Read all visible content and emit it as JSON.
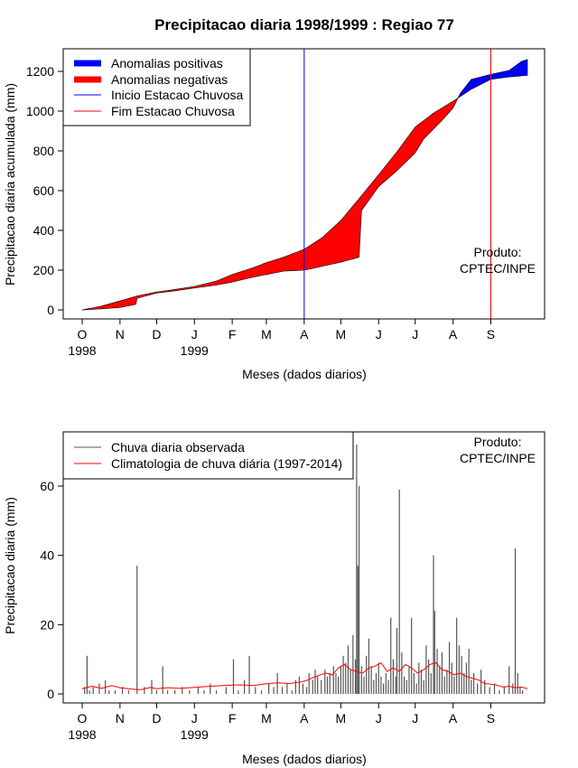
{
  "title": "Precipitacao diaria 1998/1999 : Regiao 77",
  "product": {
    "line1": "Produto:",
    "line2": "CPTEC/INPE"
  },
  "month_labels": [
    "O",
    "N",
    "D",
    "J",
    "F",
    "M",
    "A",
    "M",
    "J",
    "J",
    "A",
    "S"
  ],
  "year_labels": [
    "1998",
    "1999"
  ],
  "colors": {
    "positive": "#0000ff",
    "negative": "#ff0000",
    "season_start": "#0000ff",
    "season_end": "#ff0000",
    "observed": "#555555",
    "climatology": "#ff0000"
  },
  "chart_data": [
    {
      "type": "area",
      "title": "Precipitacao diaria 1998/1999 : Regiao 77",
      "xlabel": "Meses (dados diarios)",
      "ylabel": "Precipitacao diaria acumulada (mm)",
      "x_unit": "day index (0 = 1 Oct 1998)",
      "xlim": [
        0,
        365
      ],
      "ylim": [
        0,
        1300
      ],
      "yticks": [
        0,
        200,
        400,
        600,
        800,
        1000,
        1200
      ],
      "legend": {
        "position": "top-left",
        "entries": [
          "Anomalias positivas",
          "Anomalias negativas",
          "Inicio Estacao Chuvosa",
          "Fim Estacao Chuvosa"
        ]
      },
      "season_start_day": 182,
      "season_end_day": 335,
      "climatology_cumulative": {
        "x": [
          0,
          15,
          31,
          45,
          61,
          75,
          92,
          110,
          123,
          140,
          151,
          165,
          182,
          197,
          212,
          227,
          243,
          258,
          273,
          288,
          304,
          319,
          335,
          350,
          365
        ],
        "y": [
          0,
          18,
          45,
          70,
          90,
          102,
          118,
          145,
          178,
          212,
          238,
          265,
          305,
          365,
          450,
          560,
          680,
          795,
          920,
          990,
          1050,
          1110,
          1160,
          1172,
          1180
        ]
      },
      "observed_cumulative": {
        "x": [
          0,
          15,
          31,
          44,
          45,
          61,
          75,
          92,
          110,
          123,
          140,
          151,
          165,
          182,
          190,
          197,
          212,
          227,
          229,
          243,
          258,
          273,
          280,
          288,
          296,
          304,
          310,
          319,
          335,
          350,
          360,
          365
        ],
        "y": [
          0,
          5,
          12,
          28,
          58,
          85,
          95,
          110,
          125,
          140,
          165,
          178,
          195,
          200,
          210,
          220,
          240,
          265,
          500,
          620,
          700,
          790,
          860,
          910,
          960,
          1015,
          1090,
          1160,
          1185,
          1205,
          1250,
          1260
        ]
      }
    },
    {
      "type": "bar",
      "xlabel": "Meses (dados diarios)",
      "ylabel": "Precipitacao diaria (mm)",
      "x_unit": "day index (0 = 1 Oct 1998)",
      "xlim": [
        0,
        365
      ],
      "ylim": [
        0,
        72
      ],
      "yticks": [
        0,
        20,
        40,
        60
      ],
      "legend": {
        "position": "top-left",
        "entries": [
          "Chuva diaria observada",
          "Climatologia de chuva diária (1997-2014)"
        ]
      },
      "observed_bars": [
        {
          "day": 2,
          "value": 2
        },
        {
          "day": 4,
          "value": 11
        },
        {
          "day": 6,
          "value": 1
        },
        {
          "day": 9,
          "value": 2
        },
        {
          "day": 14,
          "value": 3
        },
        {
          "day": 19,
          "value": 4
        },
        {
          "day": 22,
          "value": 1
        },
        {
          "day": 27,
          "value": 1
        },
        {
          "day": 33,
          "value": 2
        },
        {
          "day": 38,
          "value": 1
        },
        {
          "day": 45,
          "value": 37
        },
        {
          "day": 51,
          "value": 2
        },
        {
          "day": 57,
          "value": 4
        },
        {
          "day": 61,
          "value": 1
        },
        {
          "day": 66,
          "value": 8
        },
        {
          "day": 70,
          "value": 1
        },
        {
          "day": 76,
          "value": 1
        },
        {
          "day": 82,
          "value": 2
        },
        {
          "day": 88,
          "value": 1
        },
        {
          "day": 95,
          "value": 2
        },
        {
          "day": 100,
          "value": 1
        },
        {
          "day": 105,
          "value": 3
        },
        {
          "day": 110,
          "value": 1
        },
        {
          "day": 118,
          "value": 2
        },
        {
          "day": 124,
          "value": 10
        },
        {
          "day": 128,
          "value": 1
        },
        {
          "day": 133,
          "value": 4
        },
        {
          "day": 137,
          "value": 11
        },
        {
          "day": 142,
          "value": 2
        },
        {
          "day": 147,
          "value": 1
        },
        {
          "day": 153,
          "value": 3
        },
        {
          "day": 157,
          "value": 2
        },
        {
          "day": 160,
          "value": 6
        },
        {
          "day": 164,
          "value": 2
        },
        {
          "day": 168,
          "value": 3
        },
        {
          "day": 172,
          "value": 1
        },
        {
          "day": 175,
          "value": 4
        },
        {
          "day": 178,
          "value": 5
        },
        {
          "day": 181,
          "value": 3
        },
        {
          "day": 184,
          "value": 2
        },
        {
          "day": 186,
          "value": 6
        },
        {
          "day": 189,
          "value": 4
        },
        {
          "day": 191,
          "value": 7
        },
        {
          "day": 193,
          "value": 5
        },
        {
          "day": 196,
          "value": 4
        },
        {
          "day": 199,
          "value": 7
        },
        {
          "day": 201,
          "value": 5
        },
        {
          "day": 203,
          "value": 6
        },
        {
          "day": 206,
          "value": 8
        },
        {
          "day": 208,
          "value": 6
        },
        {
          "day": 210,
          "value": 5
        },
        {
          "day": 212,
          "value": 8
        },
        {
          "day": 214,
          "value": 11
        },
        {
          "day": 216,
          "value": 9
        },
        {
          "day": 218,
          "value": 14
        },
        {
          "day": 220,
          "value": 7
        },
        {
          "day": 222,
          "value": 17
        },
        {
          "day": 224,
          "value": 10
        },
        {
          "day": 225,
          "value": 72
        },
        {
          "day": 226,
          "value": 37
        },
        {
          "day": 227,
          "value": 60
        },
        {
          "day": 229,
          "value": 8
        },
        {
          "day": 231,
          "value": 5
        },
        {
          "day": 233,
          "value": 11
        },
        {
          "day": 235,
          "value": 16
        },
        {
          "day": 237,
          "value": 8
        },
        {
          "day": 239,
          "value": 4
        },
        {
          "day": 241,
          "value": 6
        },
        {
          "day": 243,
          "value": 9
        },
        {
          "day": 245,
          "value": 5
        },
        {
          "day": 247,
          "value": 3
        },
        {
          "day": 249,
          "value": 6
        },
        {
          "day": 251,
          "value": 4
        },
        {
          "day": 253,
          "value": 22
        },
        {
          "day": 255,
          "value": 10
        },
        {
          "day": 257,
          "value": 5
        },
        {
          "day": 258,
          "value": 19
        },
        {
          "day": 260,
          "value": 59
        },
        {
          "day": 262,
          "value": 12
        },
        {
          "day": 264,
          "value": 5
        },
        {
          "day": 266,
          "value": 4
        },
        {
          "day": 268,
          "value": 8
        },
        {
          "day": 270,
          "value": 22
        },
        {
          "day": 272,
          "value": 6
        },
        {
          "day": 274,
          "value": 3
        },
        {
          "day": 276,
          "value": 9
        },
        {
          "day": 278,
          "value": 7
        },
        {
          "day": 280,
          "value": 4
        },
        {
          "day": 282,
          "value": 14
        },
        {
          "day": 284,
          "value": 10
        },
        {
          "day": 286,
          "value": 6
        },
        {
          "day": 288,
          "value": 40
        },
        {
          "day": 289,
          "value": 24
        },
        {
          "day": 291,
          "value": 13
        },
        {
          "day": 293,
          "value": 8
        },
        {
          "day": 295,
          "value": 12
        },
        {
          "day": 297,
          "value": 5
        },
        {
          "day": 299,
          "value": 7
        },
        {
          "day": 301,
          "value": 15
        },
        {
          "day": 303,
          "value": 9
        },
        {
          "day": 305,
          "value": 5
        },
        {
          "day": 307,
          "value": 22
        },
        {
          "day": 309,
          "value": 14
        },
        {
          "day": 311,
          "value": 11
        },
        {
          "day": 313,
          "value": 6
        },
        {
          "day": 315,
          "value": 9
        },
        {
          "day": 317,
          "value": 13
        },
        {
          "day": 319,
          "value": 4
        },
        {
          "day": 321,
          "value": 6
        },
        {
          "day": 324,
          "value": 3
        },
        {
          "day": 327,
          "value": 7
        },
        {
          "day": 330,
          "value": 4
        },
        {
          "day": 334,
          "value": 2
        },
        {
          "day": 338,
          "value": 3
        },
        {
          "day": 342,
          "value": 1
        },
        {
          "day": 346,
          "value": 2
        },
        {
          "day": 350,
          "value": 8
        },
        {
          "day": 353,
          "value": 3
        },
        {
          "day": 355,
          "value": 42
        },
        {
          "day": 357,
          "value": 6
        },
        {
          "day": 359,
          "value": 2
        },
        {
          "day": 361,
          "value": 1
        }
      ],
      "climatology": {
        "x": [
          0,
          8,
          16,
          24,
          31,
          40,
          48,
          56,
          61,
          70,
          80,
          92,
          100,
          110,
          120,
          130,
          140,
          150,
          160,
          170,
          180,
          185,
          190,
          195,
          200,
          205,
          210,
          215,
          220,
          225,
          230,
          235,
          240,
          245,
          250,
          255,
          260,
          265,
          270,
          275,
          280,
          285,
          290,
          295,
          300,
          305,
          310,
          315,
          320,
          325,
          330,
          335,
          340,
          345,
          350,
          355,
          360,
          365
        ],
        "y": [
          1.5,
          2.2,
          1.6,
          2.4,
          1.8,
          1.4,
          1.2,
          1.9,
          1.5,
          1.8,
          1.6,
          1.9,
          2.1,
          2.3,
          2.5,
          2.6,
          2.4,
          2.9,
          3.2,
          3.0,
          3.5,
          4.0,
          4.8,
          5.5,
          6.0,
          5.5,
          7.5,
          8.5,
          7.0,
          6.5,
          6.0,
          7.5,
          8.0,
          9.0,
          6.5,
          7.5,
          6.5,
          8.5,
          7.5,
          6.0,
          7.0,
          8.5,
          9.0,
          7.0,
          6.5,
          5.5,
          6.0,
          5.0,
          4.5,
          4.0,
          3.0,
          2.8,
          2.5,
          2.0,
          2.2,
          1.8,
          2.0,
          1.5
        ]
      }
    }
  ]
}
